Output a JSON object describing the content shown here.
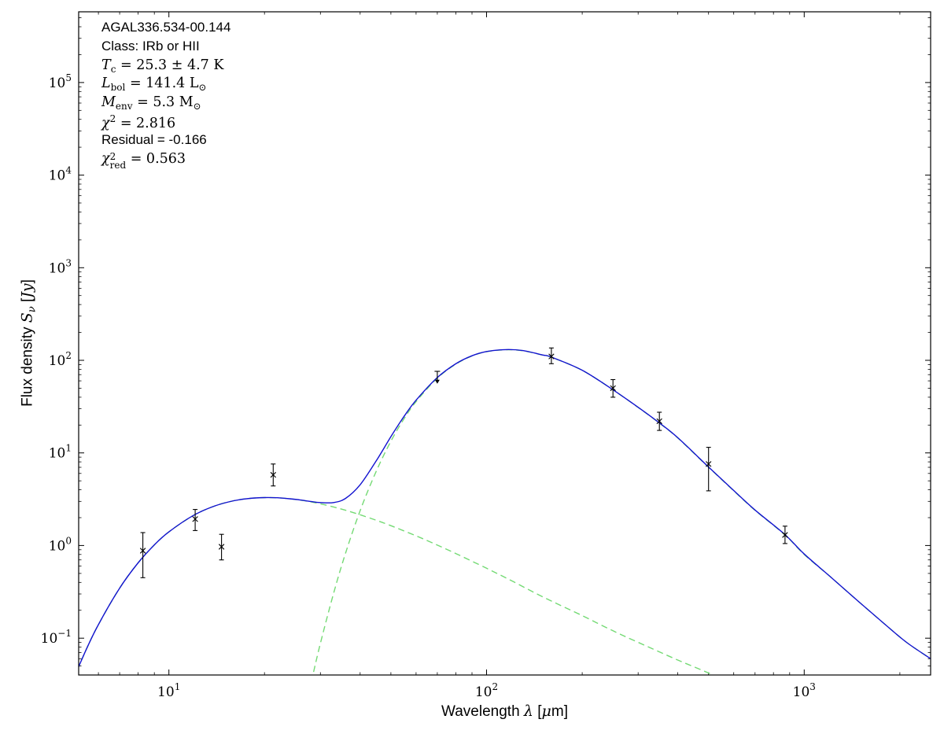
{
  "figure": {
    "background": "#ffffff",
    "grid": false,
    "legend": false
  },
  "chart_data": {
    "type": "line",
    "title": "",
    "x_axis": {
      "scale": "log",
      "label": "Wavelength λ [μm]",
      "min": 5.2,
      "max": 2500,
      "tick_exponents": [
        1,
        2,
        3
      ]
    },
    "y_axis": {
      "scale": "log",
      "label": "Flux density S_ν [Jy]",
      "min": 0.04,
      "max": 580000,
      "tick_exponents": [
        -1,
        0,
        1,
        2,
        3,
        4,
        5
      ]
    },
    "xlabel_segments": [
      {
        "t": "Wavelength ",
        "s": "sans"
      },
      {
        "t": "λ",
        "s": "mi"
      },
      {
        "t": " [",
        "s": "sans"
      },
      {
        "t": "μ",
        "s": "mi"
      },
      {
        "t": "m]",
        "s": "sans"
      }
    ],
    "ylabel_segments": [
      {
        "t": "Flux density ",
        "s": "sans"
      },
      {
        "t": "S",
        "s": "mi"
      },
      {
        "t": "ν",
        "s": "sbi"
      },
      {
        "t": " [",
        "s": "sans"
      },
      {
        "t": "Jy",
        "s": "mi"
      },
      {
        "t": "]",
        "s": "sans"
      }
    ],
    "colors": {
      "model_total": "#1212d0",
      "model_components": "#74da74",
      "data": "#000000"
    },
    "series": [
      {
        "name": "warm-component",
        "style": "dashed",
        "color": "#74da74",
        "points": [
          [
            5.0,
            0.036
          ],
          [
            5.5,
            0.076
          ],
          [
            6,
            0.14
          ],
          [
            7,
            0.347
          ],
          [
            8,
            0.65
          ],
          [
            9,
            1.016
          ],
          [
            10,
            1.405
          ],
          [
            12,
            2.133
          ],
          [
            14,
            2.687
          ],
          [
            16,
            3.043
          ],
          [
            18,
            3.233
          ],
          [
            20,
            3.297
          ],
          [
            22,
            3.277
          ],
          [
            24,
            3.199
          ],
          [
            26,
            3.089
          ],
          [
            28,
            2.959
          ],
          [
            30,
            2.821
          ],
          [
            33,
            2.608
          ],
          [
            36,
            2.403
          ],
          [
            40,
            2.149
          ],
          [
            45,
            1.872
          ],
          [
            50,
            1.638
          ],
          [
            60,
            1.273
          ],
          [
            70,
            1.011
          ],
          [
            80,
            0.82
          ],
          [
            100,
            0.569
          ],
          [
            120,
            0.416
          ],
          [
            150,
            0.28
          ],
          [
            200,
            0.175
          ],
          [
            250,
            0.12
          ],
          [
            300,
            0.09
          ],
          [
            400,
            0.058
          ],
          [
            500,
            0.042
          ],
          [
            600,
            0.031
          ]
        ]
      },
      {
        "name": "cold-component",
        "style": "dashed",
        "color": "#74da74",
        "points": [
          [
            26,
            0.0097
          ],
          [
            28,
            0.032
          ],
          [
            30,
            0.088
          ],
          [
            33,
            0.305
          ],
          [
            36,
            0.83
          ],
          [
            40,
            2.38
          ],
          [
            45,
            6.4
          ],
          [
            50,
            13.4
          ],
          [
            55,
            23.4
          ],
          [
            60,
            35.8
          ],
          [
            70,
            64.2
          ],
          [
            80,
            90.9
          ],
          [
            90,
            111.3
          ],
          [
            100,
            124
          ],
          [
            115,
            130
          ],
          [
            130,
            127
          ],
          [
            150,
            114
          ],
          [
            160,
            108
          ],
          [
            200,
            78
          ],
          [
            250,
            48
          ],
          [
            300,
            31
          ],
          [
            350,
            21
          ],
          [
            400,
            14.5
          ],
          [
            500,
            7.0
          ],
          [
            600,
            3.9
          ],
          [
            700,
            2.4
          ],
          [
            870,
            1.3
          ],
          [
            1000,
            0.8
          ],
          [
            1200,
            0.47
          ],
          [
            1500,
            0.24
          ],
          [
            1800,
            0.14
          ],
          [
            2100,
            0.09
          ],
          [
            2500,
            0.06
          ]
        ]
      },
      {
        "name": "total-model",
        "style": "solid",
        "color": "#1212d0",
        "points": [
          [
            5.0,
            0.036
          ],
          [
            5.5,
            0.076
          ],
          [
            6,
            0.14
          ],
          [
            7,
            0.347
          ],
          [
            8,
            0.65
          ],
          [
            9,
            1.016
          ],
          [
            10,
            1.405
          ],
          [
            12,
            2.133
          ],
          [
            14,
            2.687
          ],
          [
            16,
            3.043
          ],
          [
            18,
            3.233
          ],
          [
            20,
            3.297
          ],
          [
            22,
            3.28
          ],
          [
            24,
            3.2
          ],
          [
            26,
            3.1
          ],
          [
            28,
            2.99
          ],
          [
            30,
            2.91
          ],
          [
            33,
            2.91
          ],
          [
            36,
            3.23
          ],
          [
            40,
            4.53
          ],
          [
            45,
            8.27
          ],
          [
            50,
            15.0
          ],
          [
            55,
            24.8
          ],
          [
            60,
            37.1
          ],
          [
            70,
            65.2
          ],
          [
            80,
            91.7
          ],
          [
            90,
            112
          ],
          [
            100,
            124.6
          ],
          [
            115,
            130.5
          ],
          [
            130,
            127.4
          ],
          [
            150,
            114.3
          ],
          [
            160,
            108.3
          ],
          [
            200,
            78.2
          ],
          [
            250,
            48.1
          ],
          [
            300,
            31.1
          ],
          [
            350,
            21.1
          ],
          [
            400,
            14.6
          ],
          [
            500,
            7.05
          ],
          [
            600,
            3.93
          ],
          [
            700,
            2.42
          ],
          [
            870,
            1.31
          ],
          [
            1000,
            0.81
          ],
          [
            1200,
            0.47
          ],
          [
            1500,
            0.24
          ],
          [
            1800,
            0.14
          ],
          [
            2100,
            0.09
          ],
          [
            2500,
            0.06
          ]
        ]
      }
    ],
    "data_points": [
      {
        "x": 8.28,
        "y": 0.88,
        "lo": 0.45,
        "hi": 1.38
      },
      {
        "x": 12.1,
        "y": 1.93,
        "lo": 1.45,
        "hi": 2.45
      },
      {
        "x": 14.65,
        "y": 0.97,
        "lo": 0.7,
        "hi": 1.32
      },
      {
        "x": 21.3,
        "y": 5.8,
        "lo": 4.4,
        "hi": 7.6
      },
      {
        "x": 160,
        "y": 110,
        "lo": 92,
        "hi": 136
      },
      {
        "x": 250,
        "y": 50,
        "lo": 40,
        "hi": 62
      },
      {
        "x": 350,
        "y": 22,
        "lo": 17.5,
        "hi": 27.5
      },
      {
        "x": 500,
        "y": 7.6,
        "lo": 3.9,
        "hi": 11.5
      },
      {
        "x": 870,
        "y": 1.3,
        "lo": 1.05,
        "hi": 1.62
      }
    ],
    "upper_limits": [
      {
        "x": 70,
        "y_top": 76,
        "y_arrow_end": 56
      }
    ],
    "annotations": [
      {
        "font": "sans",
        "segments": [
          {
            "t": "AGAL336.534-00.144",
            "s": "sans"
          }
        ]
      },
      {
        "font": "sans",
        "segments": [
          {
            "t": "Class: IRb or HII",
            "s": "sans"
          }
        ]
      },
      {
        "font": "math",
        "segments": [
          {
            "t": "T",
            "s": "mi"
          },
          {
            "t": "c",
            "s": "sb"
          },
          {
            "t": " = 25.3 ± 4.7 K",
            "s": "mr"
          }
        ]
      },
      {
        "font": "math",
        "segments": [
          {
            "t": "L",
            "s": "mi"
          },
          {
            "t": "bol",
            "s": "sb"
          },
          {
            "t": " = 141.4 L",
            "s": "mr"
          },
          {
            "t": "⊙",
            "s": "sb"
          }
        ]
      },
      {
        "font": "math",
        "segments": [
          {
            "t": "M",
            "s": "mi"
          },
          {
            "t": "env",
            "s": "sb"
          },
          {
            "t": " = 5.3 M",
            "s": "mr"
          },
          {
            "t": "⊙",
            "s": "sb"
          }
        ]
      },
      {
        "font": "math",
        "segments": [
          {
            "t": "χ",
            "s": "mi"
          },
          {
            "t": "2",
            "s": "sp"
          },
          {
            "t": " = 2.816",
            "s": "mr"
          }
        ]
      },
      {
        "font": "sans",
        "segments": [
          {
            "t": "Residual = -0.166",
            "s": "sans"
          }
        ]
      },
      {
        "font": "math",
        "segments": [
          {
            "t": "χ",
            "s": "mi"
          },
          {
            "s": "stack",
            "sup": "2",
            "sub": "red"
          },
          {
            "t": " = 0.563",
            "s": "mr"
          }
        ]
      }
    ]
  }
}
